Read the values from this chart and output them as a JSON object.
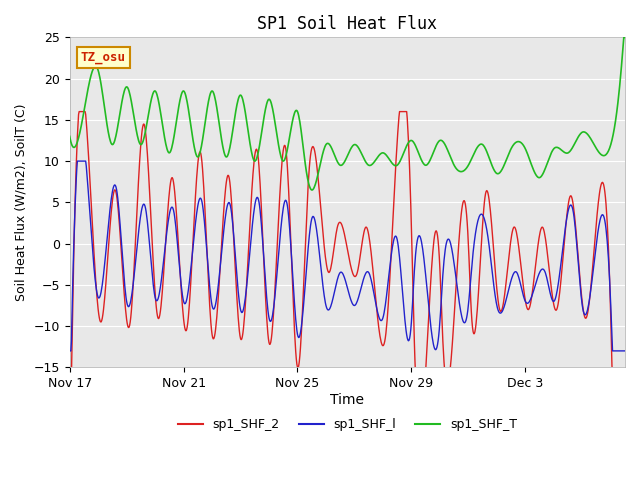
{
  "title": "SP1 Soil Heat Flux",
  "xlabel": "Time",
  "ylabel": "Soil Heat Flux (W/m2), SoilT (C)",
  "ylim": [
    -15,
    25
  ],
  "yticks": [
    -15,
    -10,
    -5,
    0,
    5,
    10,
    15,
    20,
    25
  ],
  "xtick_labels": [
    "Nov 17",
    "Nov 21",
    "Nov 25",
    "Nov 29",
    "Dec 3"
  ],
  "xtick_positions": [
    0,
    4,
    8,
    12,
    16
  ],
  "xlim": [
    0,
    19.5
  ],
  "color_red": "#dd2222",
  "color_blue": "#2222cc",
  "color_green": "#22bb22",
  "bg_color": "#e8e8e8",
  "legend_entries": [
    "sp1_SHF_2",
    "sp1_SHF_l",
    "sp1_SHF_T"
  ],
  "tz_label": "TZ_osu",
  "tz_bg": "#ffffcc",
  "tz_border": "#cc8800"
}
